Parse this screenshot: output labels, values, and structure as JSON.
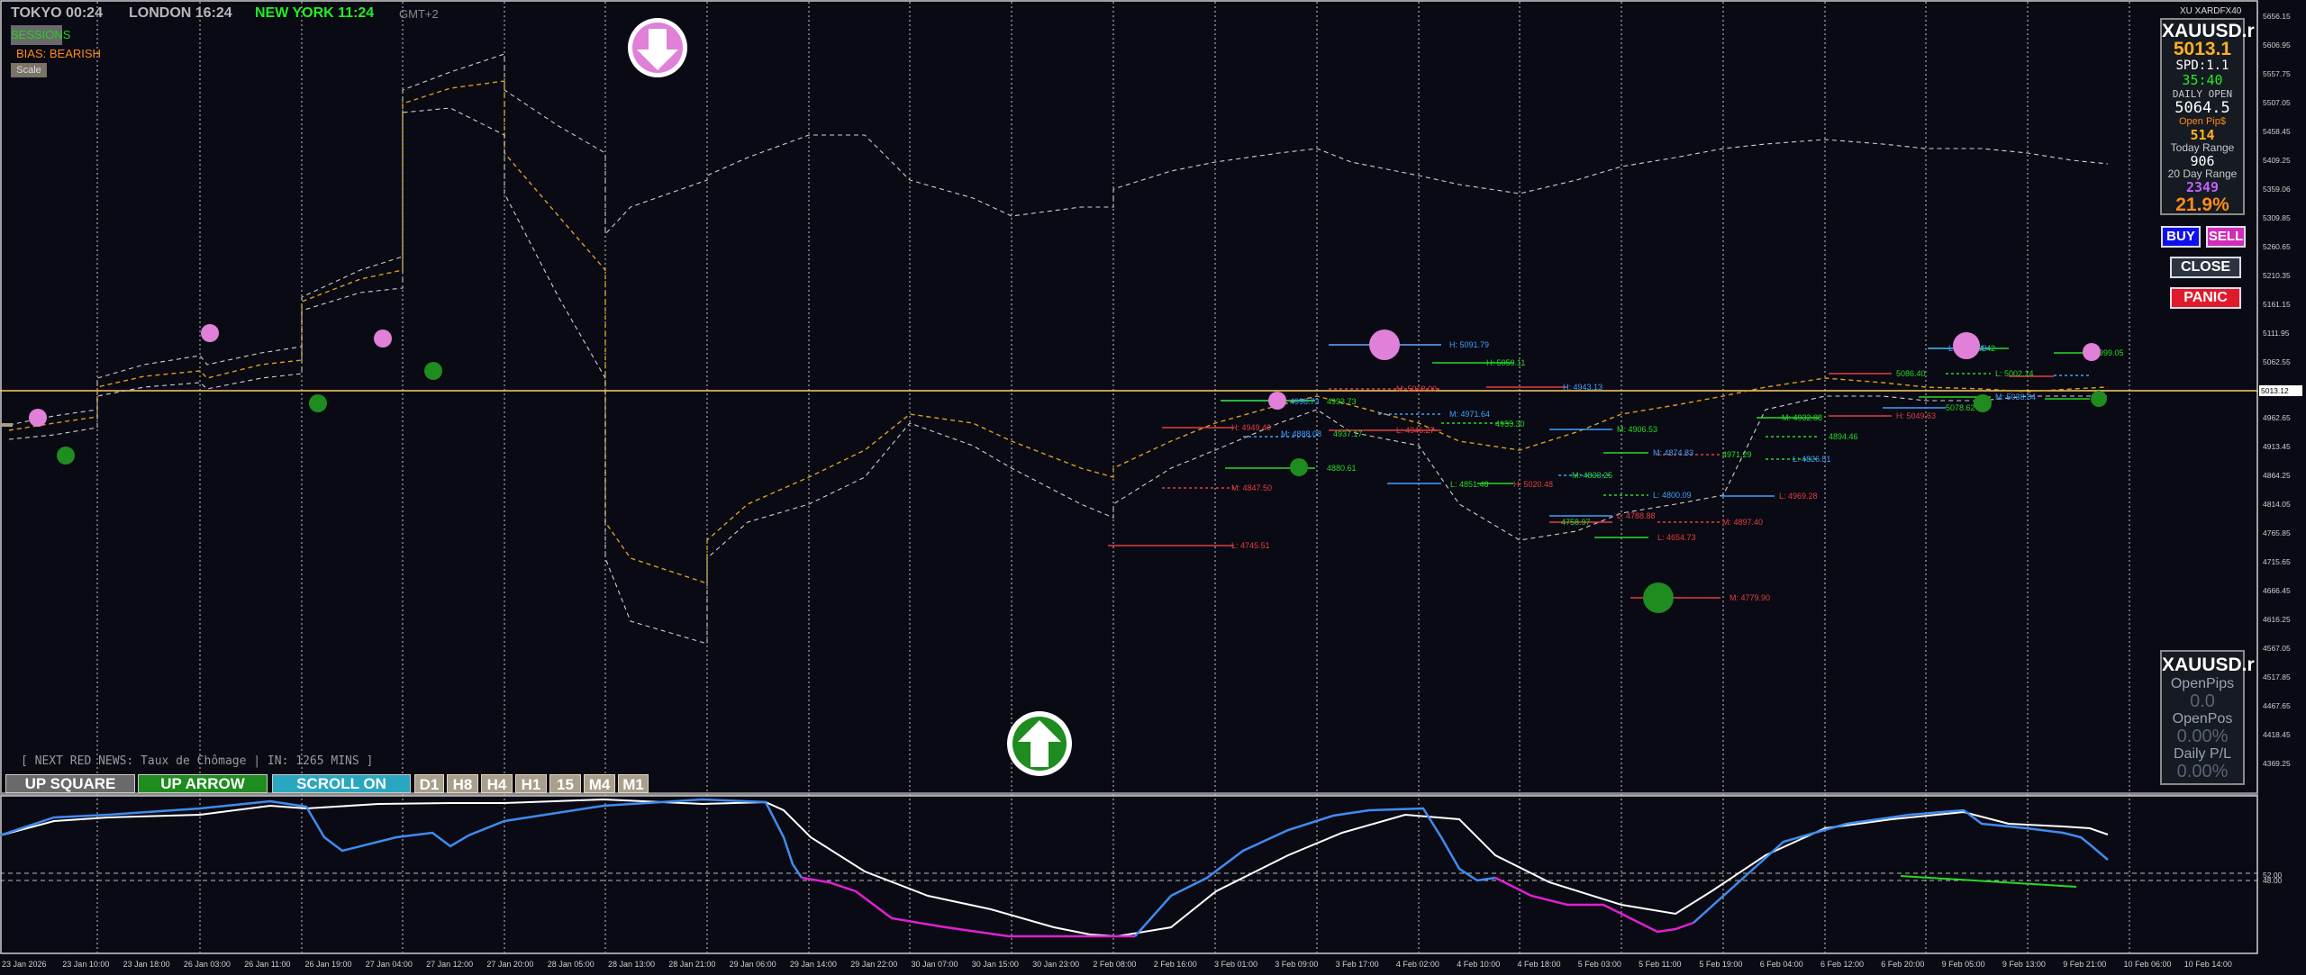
{
  "header": {
    "tokyo": "TOKYO 00:24",
    "london": "LONDON 16:24",
    "newyork": "NEW YORK 11:24",
    "gmt": "GMT+2"
  },
  "sessions_button": "SESSIONS",
  "bias": "BIAS: BEARISH",
  "scale_button": "Scale",
  "broker_label": "XU XARDFX40",
  "info_panel": {
    "symbol": "XAUUSD.r",
    "price": "5013.1",
    "spread": "SPD:1.1",
    "timer": "35:40",
    "daily_open_label": "DAILY OPEN",
    "daily_open_value": "5064.5",
    "open_pips_label": "Open Pip$",
    "open_pips_value": "514",
    "today_range_label": "Today Range",
    "today_range_value": "906",
    "range20_label": "20 Day Range",
    "range20_value": "2349",
    "percent": "21.9%"
  },
  "trade_buttons": {
    "buy": "BUY",
    "sell": "SELL",
    "close": "CLOSE",
    "panic": "PANIC"
  },
  "pips_panel": {
    "symbol": "XAUUSD.r",
    "open_pips_label": "OpenPips",
    "open_pips_value": "0.0",
    "open_pos_label": "OpenPos",
    "open_pos_value": "0.00%",
    "daily_pl_label": "Daily P/L",
    "daily_pl_value": "0.00%"
  },
  "news_line": "[ NEXT RED NEWS: Taux de Chômage | IN: 1265 MINS ]",
  "toolbar": {
    "up_square": "UP SQUARE",
    "up_arrow": "UP ARROW",
    "scroll_on": "SCROLL ON",
    "timeframes": [
      "D1",
      "H8",
      "H4",
      "H1",
      "15",
      "M4",
      "M1"
    ]
  },
  "current_price_tag": "5013.12",
  "price_axis": [
    "5656.15",
    "5606.95",
    "5557.75",
    "5507.05",
    "5458.45",
    "5409.25",
    "5359.06",
    "5309.85",
    "5260.65",
    "5210.35",
    "5161.15",
    "5111.95",
    "5062.55",
    "4962.65",
    "4913.45",
    "4864.25",
    "4814.05",
    "4765.85",
    "4715.65",
    "4666.45",
    "4616.25",
    "4567.05",
    "4517.85",
    "4467.65",
    "4418.45",
    "4369.25"
  ],
  "time_axis": [
    "23 Jan 2026",
    "23 Jan 10:00",
    "23 Jan 18:00",
    "26 Jan 03:00",
    "26 Jan 11:00",
    "26 Jan 19:00",
    "27 Jan 04:00",
    "27 Jan 12:00",
    "27 Jan 20:00",
    "28 Jan 05:00",
    "28 Jan 13:00",
    "28 Jan 21:00",
    "29 Jan 06:00",
    "29 Jan 14:00",
    "29 Jan 22:00",
    "30 Jan 07:00",
    "30 Jan 15:00",
    "30 Jan 23:00",
    "2 Feb 08:00",
    "2 Feb 16:00",
    "3 Feb 01:00",
    "3 Feb 09:00",
    "3 Feb 17:00",
    "4 Feb 02:00",
    "4 Feb 10:00",
    "4 Feb 18:00",
    "5 Feb 03:00",
    "5 Feb 11:00",
    "5 Feb 19:00",
    "6 Feb 04:00",
    "6 Feb 12:00",
    "6 Feb 20:00",
    "9 Feb 05:00",
    "9 Feb 13:00",
    "9 Feb 21:00",
    "10 Feb 06:00",
    "10 Feb 14:00"
  ],
  "oscillator_axis": [
    "52.00",
    "48.00"
  ],
  "level_labels": [
    {
      "t": "H: 4949.49",
      "c": "#e04040"
    },
    {
      "t": "M: 4847.50",
      "c": "#e04040"
    },
    {
      "t": "L: 4745.51",
      "c": "#e04040"
    },
    {
      "t": "4998.73",
      "c": "#3fa0ff"
    },
    {
      "t": "4993.73",
      "c": "#26d926"
    },
    {
      "t": "M: 4888.08",
      "c": "#3fa0ff"
    },
    {
      "t": "4937.17",
      "c": "#26d926"
    },
    {
      "t": "4880.61",
      "c": "#26d926"
    },
    {
      "t": "H: 5091.79",
      "c": "#3fa0ff"
    },
    {
      "t": "H: 5059.11",
      "c": "#26d926"
    },
    {
      "t": "M: 5018.00",
      "c": "#e04040"
    },
    {
      "t": "L: 4946.27",
      "c": "#e04040"
    },
    {
      "t": "M: 4971.64",
      "c": "#3fa0ff"
    },
    {
      "t": "4955.30",
      "c": "#26d926"
    },
    {
      "t": "L: 4851.48",
      "c": "#26d926"
    },
    {
      "t": "H: 5020.48",
      "c": "#e04040"
    },
    {
      "t": "H: 4943.13",
      "c": "#3fa0ff"
    },
    {
      "t": "M: 4906.53",
      "c": "#26d926"
    },
    {
      "t": "M: 4874.83",
      "c": "#3fa0ff"
    },
    {
      "t": "M: 4833.25",
      "c": "#26d926"
    },
    {
      "t": "L: 4800.09",
      "c": "#3fa0ff"
    },
    {
      "t": "L: 4788.88",
      "c": "#e04040"
    },
    {
      "t": "4758.97",
      "c": "#26d926"
    },
    {
      "t": "L: 4654.73",
      "c": "#e04040"
    },
    {
      "t": "M: 4779.90",
      "c": "#e04040"
    },
    {
      "t": "M: 4897.40",
      "c": "#e04040"
    },
    {
      "t": "4971.29",
      "c": "#26d926"
    },
    {
      "t": "M: 4932.88",
      "c": "#26d926"
    },
    {
      "t": "4894.46",
      "c": "#26d926"
    },
    {
      "t": "L: 4826.51",
      "c": "#3fa0ff"
    },
    {
      "t": "L: 4969.28",
      "c": "#e04040"
    },
    {
      "t": "H: 5049.63",
      "c": "#e04040"
    },
    {
      "t": "5086.40",
      "c": "#26d926"
    },
    {
      "t": "M: 5044.42",
      "c": "#26d926"
    },
    {
      "t": "L: 4983.09",
      "c": "#3fa0ff"
    },
    {
      "t": "L: 5002.14",
      "c": "#26d926"
    },
    {
      "t": "5078.62",
      "c": "#26d926"
    },
    {
      "t": "M: 5038.84",
      "c": "#3fa0ff"
    },
    {
      "t": "4999.05",
      "c": "#26d926"
    }
  ],
  "colors": {
    "background": "#0a0a14",
    "buy": "#1010ee",
    "sell": "#d02cb8",
    "panic": "#e01a2a",
    "price_line": "#ffcc66",
    "bull_dot": "#1e8c1e",
    "bear_dot": "#e080d8"
  },
  "icons": {
    "sell_arrow": "down-arrow-icon",
    "buy_arrow": "up-arrow-icon"
  }
}
